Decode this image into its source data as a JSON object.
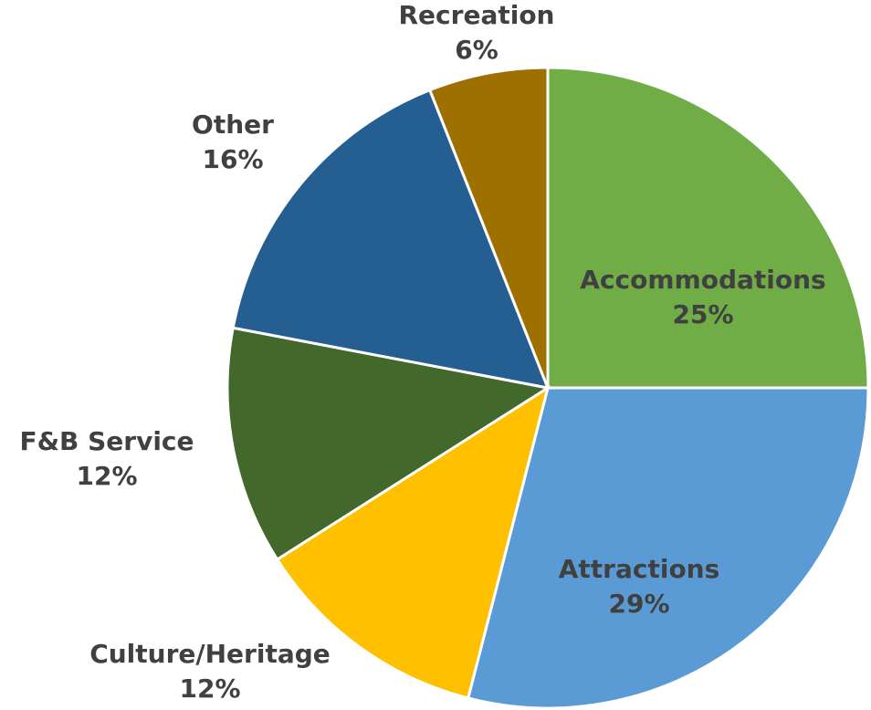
{
  "chart_data": {
    "type": "pie",
    "categories": [
      "Accommodations",
      "Attractions",
      "Culture/Heritage",
      "F&B Service",
      "Other",
      "Recreation"
    ],
    "values": [
      25,
      29,
      12,
      12,
      16,
      6
    ],
    "value_labels": [
      "25%",
      "29%",
      "12%",
      "12%",
      "16%",
      "6%"
    ],
    "colors": [
      "#70ad47",
      "#5b9bd5",
      "#ffc000",
      "#43682b",
      "#255e91",
      "#9e7000"
    ]
  }
}
